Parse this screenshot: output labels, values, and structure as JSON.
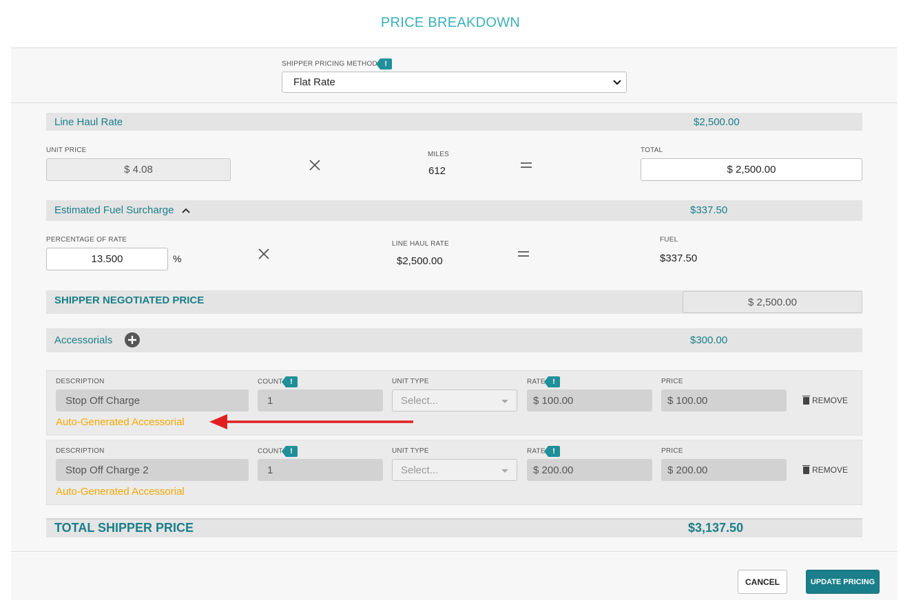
{
  "modal": {
    "title": "PRICE BREAKDOWN"
  },
  "method": {
    "label": "SHIPPER PRICING METHOD",
    "tip": "!",
    "value": "Flat Rate"
  },
  "line_haul": {
    "label": "Line Haul Rate",
    "value": "$2,500.00",
    "unit_price_label": "UNIT PRICE",
    "unit_price": "$ 4.08",
    "miles_label": "MILES",
    "miles": "612",
    "total_label": "TOTAL",
    "total": "$ 2,500.00"
  },
  "fuel": {
    "label": "Estimated Fuel Surcharge",
    "value": "$337.50",
    "percentage_label": "PERCENTAGE OF RATE",
    "percentage": "13.500",
    "percent_sign": "%",
    "line_haul_label": "LINE HAUL RATE",
    "line_haul": "$2,500.00",
    "fuel_label": "FUEL",
    "fuel": "$337.50"
  },
  "negotiated": {
    "label": "SHIPPER NEGOTIATED PRICE",
    "value": "$ 2,500.00"
  },
  "accessorials": {
    "label": "Accessorials",
    "value": "$300.00",
    "headers": {
      "description": "DESCRIPTION",
      "count": "COUNT",
      "unit_type": "UNIT TYPE",
      "rate": "RATE",
      "price": "PRICE"
    },
    "tip": "!",
    "unit_type_placeholder": "Select...",
    "remove_label": "REMOVE",
    "auto_note": "Auto-Generated Accessorial",
    "items": [
      {
        "description": "Stop Off Charge",
        "count": "1",
        "rate": "$ 100.00",
        "price": "$ 100.00"
      },
      {
        "description": "Stop Off Charge 2",
        "count": "1",
        "rate": "$ 200.00",
        "price": "$ 200.00"
      }
    ]
  },
  "total": {
    "label": "TOTAL SHIPPER PRICE",
    "value": "$3,137.50"
  },
  "footer": {
    "cancel": "CANCEL",
    "update": "UPDATE PRICING"
  },
  "colors": {
    "teal": "#1a7f8a",
    "title_teal": "#3ab0ba",
    "auto_note": "#f2a800",
    "arrow": "#e02020"
  }
}
